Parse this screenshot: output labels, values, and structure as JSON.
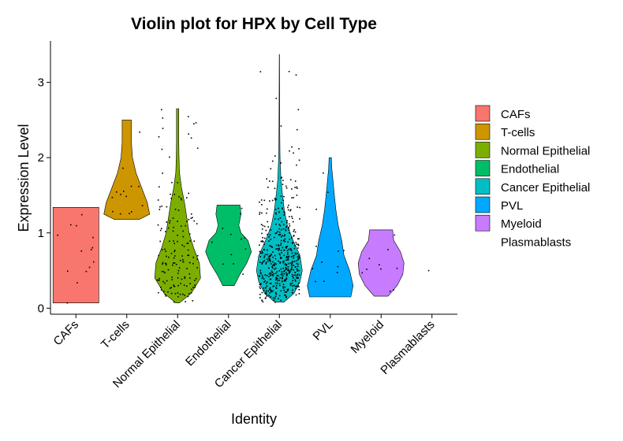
{
  "chart_data": {
    "type": "violin",
    "title": "Violin plot for HPX by Cell Type",
    "xlabel": "Identity",
    "ylabel": "Expression Level",
    "ylim": [
      -0.08,
      3.55
    ],
    "yticks": [
      0,
      1,
      2,
      3
    ],
    "categories": [
      "CAFs",
      "T-cells",
      "Normal Epithelial",
      "Endothelial",
      "Cancer Epithelial",
      "PVL",
      "Myeloid",
      "Plasmablasts"
    ],
    "series": [
      {
        "name": "CAFs",
        "color": "#F8766D",
        "min": 0.07,
        "max": 1.34,
        "density": [
          [
            0.07,
            1.0
          ],
          [
            0.3,
            1.0
          ],
          [
            0.6,
            1.0
          ],
          [
            0.9,
            1.0
          ],
          [
            1.2,
            1.0
          ],
          [
            1.34,
            1.0
          ]
        ],
        "n_points": 14
      },
      {
        "name": "T-cells",
        "color": "#CD9600",
        "min": 1.18,
        "max": 2.5,
        "density": [
          [
            1.18,
            0.55
          ],
          [
            1.25,
            1.0
          ],
          [
            1.4,
            0.9
          ],
          [
            1.6,
            0.65
          ],
          [
            1.8,
            0.4
          ],
          [
            2.0,
            0.25
          ],
          [
            2.2,
            0.2
          ],
          [
            2.35,
            0.2
          ],
          [
            2.5,
            0.2
          ]
        ],
        "n_points": 14
      },
      {
        "name": "Normal Epithelial",
        "color": "#7CAE00",
        "min": 0.07,
        "max": 2.65,
        "density": [
          [
            0.07,
            0.08
          ],
          [
            0.2,
            0.6
          ],
          [
            0.4,
            1.0
          ],
          [
            0.6,
            0.95
          ],
          [
            0.8,
            0.7
          ],
          [
            1.0,
            0.5
          ],
          [
            1.2,
            0.4
          ],
          [
            1.4,
            0.3
          ],
          [
            1.6,
            0.17
          ],
          [
            1.8,
            0.08
          ],
          [
            2.0,
            0.06
          ],
          [
            2.2,
            0.05
          ],
          [
            2.4,
            0.05
          ],
          [
            2.65,
            0.05
          ]
        ],
        "n_points": 160
      },
      {
        "name": "Endothelial",
        "color": "#00BE67",
        "min": 0.3,
        "max": 1.37,
        "density": [
          [
            0.3,
            0.25
          ],
          [
            0.45,
            0.5
          ],
          [
            0.6,
            0.8
          ],
          [
            0.75,
            1.0
          ],
          [
            0.9,
            0.85
          ],
          [
            1.0,
            0.55
          ],
          [
            1.1,
            0.45
          ],
          [
            1.25,
            0.55
          ],
          [
            1.37,
            0.5
          ]
        ],
        "n_points": 12
      },
      {
        "name": "Cancer Epithelial",
        "color": "#00BFC4",
        "min": 0.08,
        "max": 3.37,
        "density": [
          [
            0.08,
            0.2
          ],
          [
            0.2,
            0.65
          ],
          [
            0.35,
            0.9
          ],
          [
            0.5,
            1.0
          ],
          [
            0.7,
            0.9
          ],
          [
            0.9,
            0.6
          ],
          [
            1.1,
            0.35
          ],
          [
            1.3,
            0.22
          ],
          [
            1.5,
            0.14
          ],
          [
            1.7,
            0.07
          ],
          [
            2.0,
            0.03
          ],
          [
            2.3,
            0.02
          ],
          [
            2.7,
            0.012
          ],
          [
            3.0,
            0.008
          ],
          [
            3.37,
            0.006
          ]
        ],
        "n_points": 500
      },
      {
        "name": "PVL",
        "color": "#00A9FF",
        "min": 0.15,
        "max": 2.0,
        "density": [
          [
            0.15,
            0.9
          ],
          [
            0.3,
            1.0
          ],
          [
            0.5,
            0.85
          ],
          [
            0.7,
            0.6
          ],
          [
            0.9,
            0.5
          ],
          [
            1.1,
            0.35
          ],
          [
            1.3,
            0.25
          ],
          [
            1.5,
            0.18
          ],
          [
            1.7,
            0.12
          ],
          [
            1.85,
            0.07
          ],
          [
            2.0,
            0.05
          ]
        ],
        "n_points": 12
      },
      {
        "name": "Myeloid",
        "color": "#C77CFF",
        "min": 0.16,
        "max": 1.04,
        "density": [
          [
            0.16,
            0.3
          ],
          [
            0.3,
            0.7
          ],
          [
            0.45,
            0.95
          ],
          [
            0.6,
            1.0
          ],
          [
            0.75,
            0.85
          ],
          [
            0.9,
            0.55
          ],
          [
            1.04,
            0.5
          ]
        ],
        "n_points": 10
      },
      {
        "name": "Plasmablasts",
        "color": "#FF61CC",
        "min": 0.5,
        "max": 0.5,
        "density": [],
        "n_points": 1,
        "points": [
          0.5
        ]
      }
    ],
    "legend": {
      "position": "right"
    },
    "grid": false
  }
}
